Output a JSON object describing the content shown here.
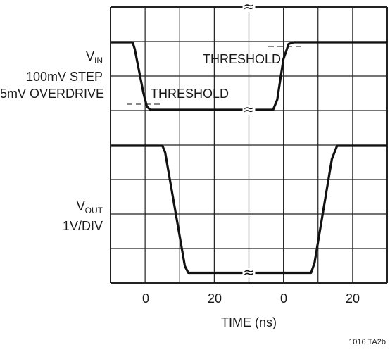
{
  "chart_data": {
    "type": "line",
    "xlabel": "TIME (ns)",
    "x_ticks": [
      "0",
      "20",
      "0",
      "20"
    ],
    "vin_label": {
      "main": "V",
      "sub": "IN",
      "line2": "100mV STEP",
      "line3": "5mV OVERDRIVE"
    },
    "vout_label": {
      "main": "V",
      "sub": "OUT",
      "line2": "1V/DIV"
    },
    "annotations": [
      "THRESHOLD",
      "THRESHOLD"
    ],
    "grid": true,
    "grid_divisions": {
      "x": 8,
      "y": 8
    },
    "axis_break": "≈",
    "series": [
      {
        "segment": "left",
        "x_range_ns": [
          -10,
          30
        ],
        "vin_x": [
          -10,
          -3.6,
          -3,
          -0.5,
          0.5,
          1.5,
          30
        ],
        "vin_y": [
          7,
          7,
          6.8,
          5.5,
          5.1,
          5,
          5
        ],
        "vout_x": [
          -10,
          5,
          5.8,
          11.5,
          12.5,
          30
        ],
        "vout_y": [
          4,
          4,
          3.8,
          0.4,
          0.2,
          0.2
        ]
      },
      {
        "segment": "right",
        "x_range_ns": [
          -10,
          30
        ],
        "vin_x": [
          -10,
          -3,
          -1.8,
          0,
          1.5,
          3,
          30
        ],
        "vin_y": [
          5,
          5,
          5.3,
          6.5,
          6.95,
          7,
          7
        ],
        "vout_x": [
          -10,
          8,
          9,
          14,
          15.5,
          30
        ],
        "vout_y": [
          0.2,
          0.2,
          0.5,
          3.6,
          4,
          4
        ]
      }
    ]
  },
  "footnote": "1016 TA2b"
}
